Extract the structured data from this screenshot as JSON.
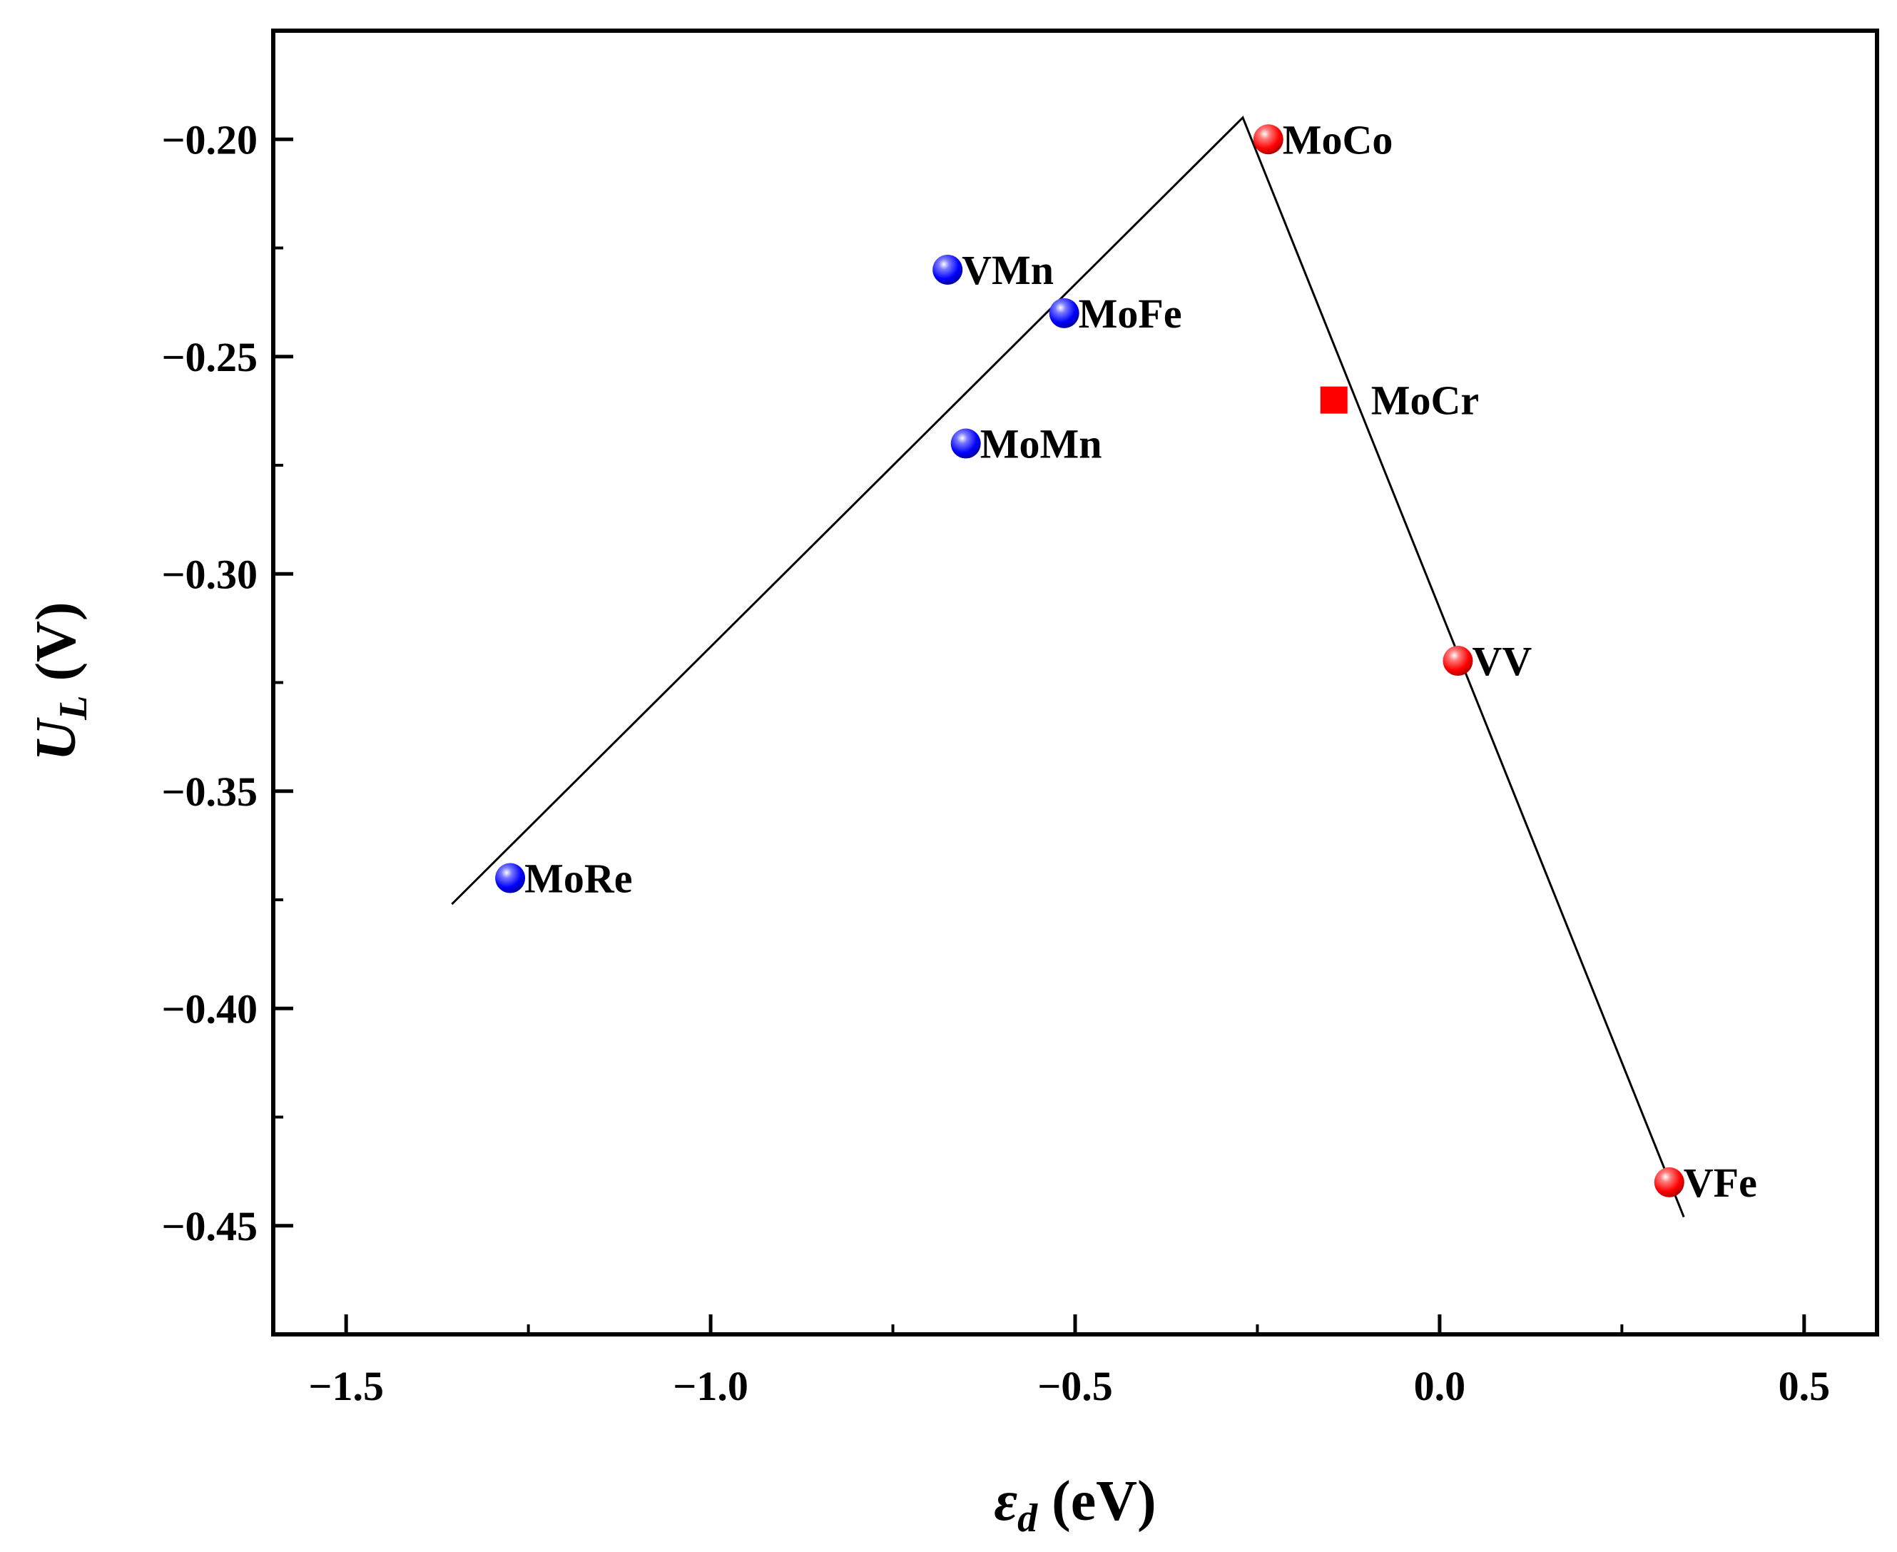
{
  "chart_data": {
    "type": "scatter",
    "title": "",
    "xlabel": {
      "symbol": "ε",
      "sub": "d",
      "unit": " (eV)"
    },
    "ylabel": {
      "symbol": "U",
      "sub": "L",
      "unit": " (V)"
    },
    "xlim": [
      -1.6,
      0.6
    ],
    "ylim": [
      -0.475,
      -0.175
    ],
    "xticks": [
      {
        "value": -1.5,
        "label": "−1.5"
      },
      {
        "value": -1.0,
        "label": "−1.0"
      },
      {
        "value": -0.5,
        "label": "−0.5"
      },
      {
        "value": 0.0,
        "label": "0.0"
      },
      {
        "value": 0.5,
        "label": "0.5"
      }
    ],
    "yticks": [
      {
        "value": -0.2,
        "label": "−0.20"
      },
      {
        "value": -0.25,
        "label": "−0.25"
      },
      {
        "value": -0.3,
        "label": "−0.30"
      },
      {
        "value": -0.35,
        "label": "−0.35"
      },
      {
        "value": -0.4,
        "label": "−0.40"
      },
      {
        "value": -0.45,
        "label": "−0.45"
      }
    ],
    "points": [
      {
        "label": "MoCo",
        "x": -0.235,
        "y": -0.2,
        "color": "#ff0000",
        "marker": "sphere"
      },
      {
        "label": "VMn",
        "x": -0.675,
        "y": -0.23,
        "color": "#0000ff",
        "marker": "sphere"
      },
      {
        "label": "MoFe",
        "x": -0.515,
        "y": -0.24,
        "color": "#0000ff",
        "marker": "sphere"
      },
      {
        "label": "MoCr",
        "x": -0.145,
        "y": -0.26,
        "color": "#ff0000",
        "marker": "square"
      },
      {
        "label": "MoMn",
        "x": -0.65,
        "y": -0.27,
        "color": "#0000ff",
        "marker": "sphere"
      },
      {
        "label": "VV",
        "x": 0.025,
        "y": -0.32,
        "color": "#ff0000",
        "marker": "sphere"
      },
      {
        "label": "MoRe",
        "x": -1.275,
        "y": -0.37,
        "color": "#0000ff",
        "marker": "sphere"
      },
      {
        "label": "VFe",
        "x": 0.315,
        "y": -0.44,
        "color": "#ff0000",
        "marker": "sphere"
      }
    ],
    "volcano_line": {
      "x": [
        -1.355,
        -0.27,
        0.335
      ],
      "y": [
        -0.376,
        -0.195,
        -0.448
      ]
    }
  }
}
